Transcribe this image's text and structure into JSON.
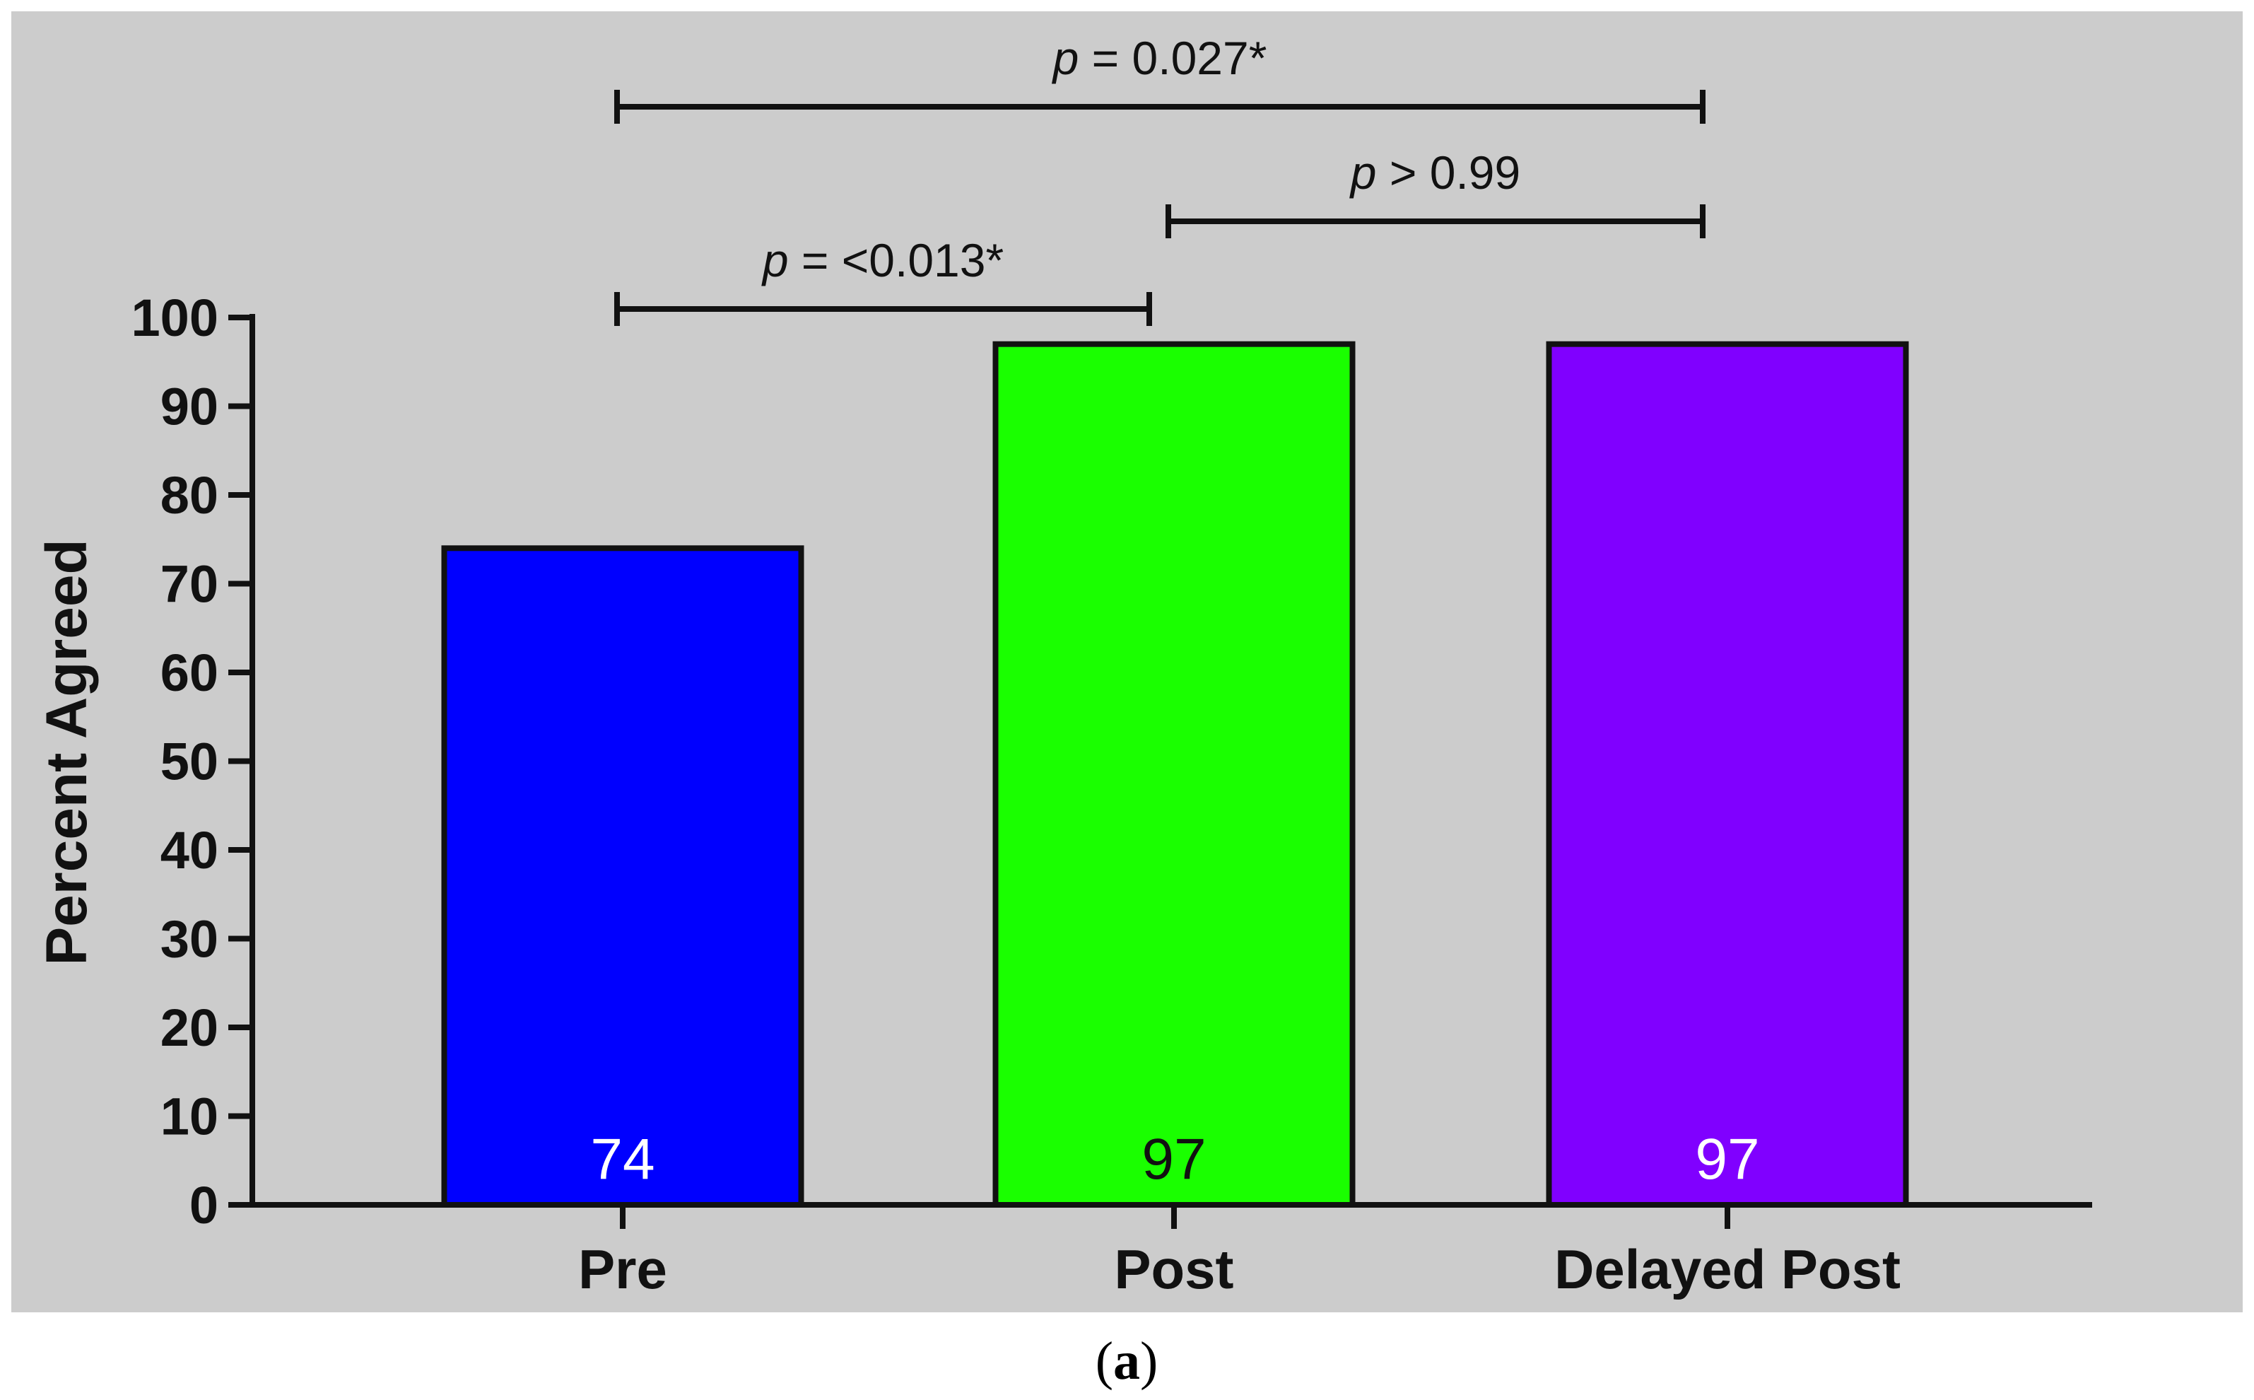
{
  "chart_data": {
    "type": "bar",
    "categories": [
      "Pre",
      "Post",
      "Delayed Post"
    ],
    "values": [
      74,
      97,
      97
    ],
    "colors": [
      "#0000ff",
      "#1aff00",
      "#8000ff"
    ],
    "value_label_colors": [
      "#ffffff",
      "#111111",
      "#ffffff"
    ],
    "title": "",
    "xlabel": "",
    "ylabel": "Percent Agreed",
    "ylim": [
      0,
      100
    ],
    "yticks": [
      0,
      10,
      20,
      30,
      40,
      50,
      60,
      70,
      80,
      90,
      100
    ],
    "grid": false,
    "background": "#cccccc",
    "comparisons": [
      {
        "from": 0,
        "to": 2,
        "p_symbol": "p",
        "p_text": " = 0.027*",
        "level": 3
      },
      {
        "from": 1,
        "to": 2,
        "p_symbol": "p",
        "p_text": " > 0.99",
        "level": 2
      },
      {
        "from": 0,
        "to": 1,
        "p_symbol": "p",
        "p_text": " = <0.013*",
        "level": 1
      }
    ]
  },
  "caption": {
    "open": "(",
    "letter": "a",
    "close": ")"
  }
}
